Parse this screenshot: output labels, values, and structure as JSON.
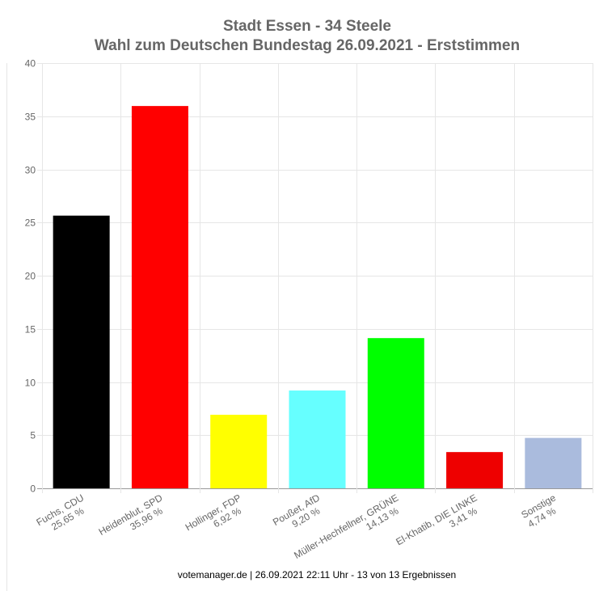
{
  "chart_data": {
    "type": "bar",
    "title": "Stadt Essen - 34 Steele",
    "subtitle": "Wahl zum Deutschen Bundestag 26.09.2021  - Erststimmen",
    "categories": [
      "Fuchs, CDU",
      "Heidenblut, SPD",
      "Hollinger, FDP",
      "Poußet, AfD",
      "Müller-Hechfellner, GRÜNE",
      "El-Khatib, DIE LINKE",
      "Sonstige"
    ],
    "values": [
      25.65,
      35.96,
      6.92,
      9.2,
      14.13,
      3.41,
      4.74
    ],
    "value_labels": [
      "25,65 %",
      "35,96 %",
      "6,92 %",
      "9,20 %",
      "14,13 %",
      "3,41 %",
      "4,74 %"
    ],
    "colors": [
      "#000000",
      "#ff0000",
      "#ffff00",
      "#66ffff",
      "#00ff00",
      "#ee0000",
      "#aabbdd"
    ],
    "ylim": [
      0,
      40
    ],
    "yticks": [
      0,
      5,
      10,
      15,
      20,
      25,
      30,
      35,
      40
    ],
    "grid": true,
    "footer": "votemanager.de | 26.09.2021 22:11 Uhr - 13 von 13 Ergebnissen"
  }
}
